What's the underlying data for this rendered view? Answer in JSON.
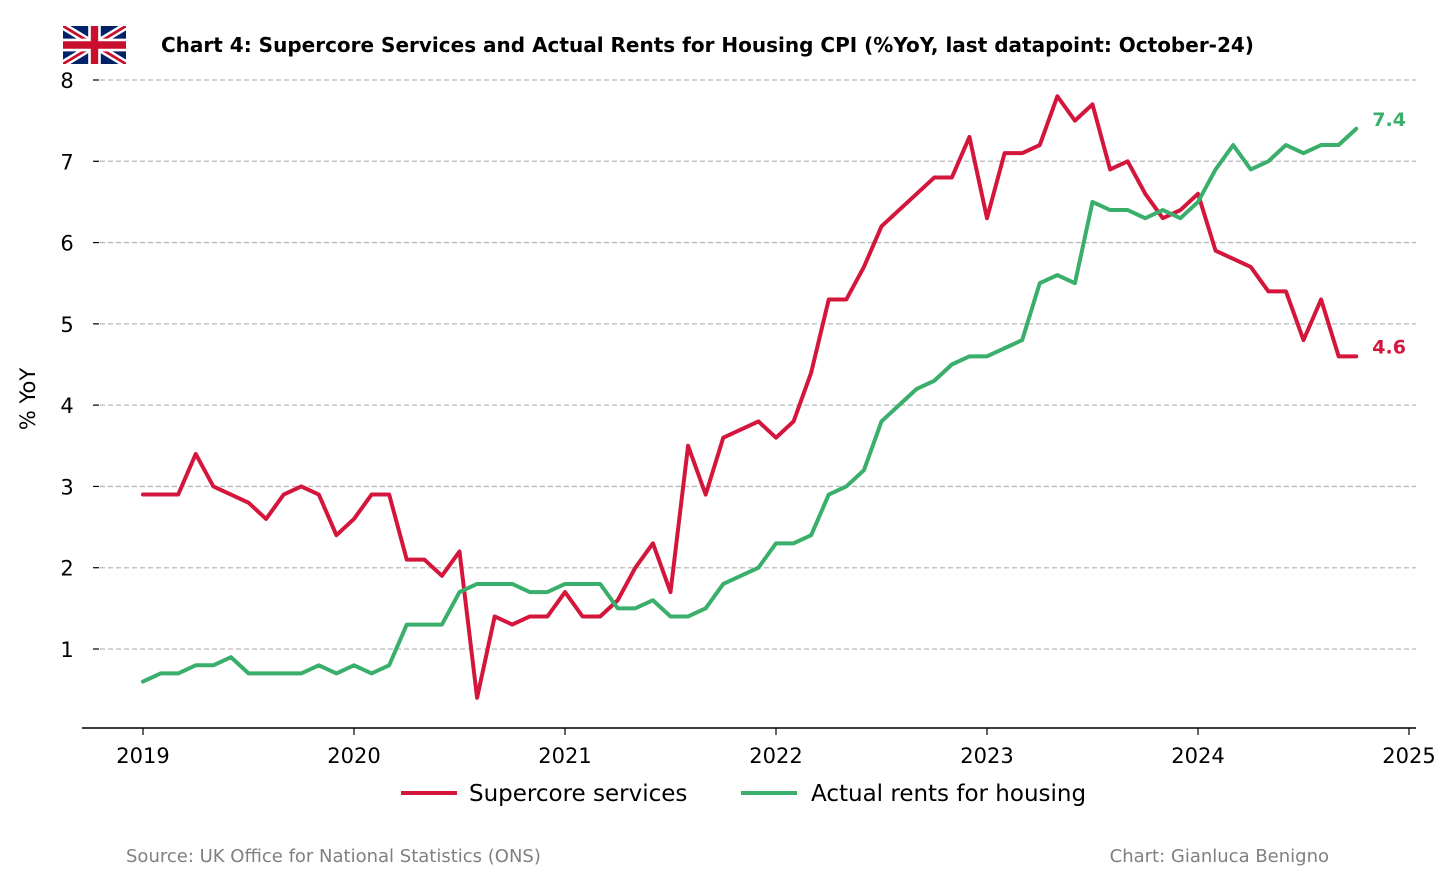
{
  "chart_data": {
    "type": "line",
    "title": "Chart 4: Supercore Services and Actual Rents for Housing CPI (%YoY, last datapoint: October-24)",
    "ylabel": "% YoY",
    "xlabel": "",
    "ylim": [
      0,
      8
    ],
    "xlim": [
      2019,
      2025
    ],
    "x_ticks": [
      "2019",
      "2020",
      "2021",
      "2022",
      "2023",
      "2024",
      "2025"
    ],
    "y_ticks": [
      "1",
      "2",
      "3",
      "4",
      "5",
      "6",
      "7",
      "8"
    ],
    "grid": "horizontal dashed",
    "legend_position": "bottom-center",
    "x_start": "2019-01",
    "x_frequency": "monthly",
    "series": [
      {
        "name": "Supercore services",
        "color": "#d4163c",
        "end_label": "4.6",
        "values": [
          2.9,
          2.9,
          2.9,
          3.4,
          3.0,
          2.9,
          2.8,
          2.6,
          2.9,
          3.0,
          2.9,
          2.4,
          2.6,
          2.9,
          2.9,
          2.1,
          2.1,
          1.9,
          2.2,
          0.4,
          1.4,
          1.3,
          1.4,
          1.4,
          1.7,
          1.4,
          1.4,
          1.6,
          2.0,
          2.3,
          1.7,
          3.5,
          2.9,
          3.6,
          3.7,
          3.8,
          3.6,
          3.8,
          4.4,
          5.3,
          5.3,
          5.7,
          6.2,
          6.4,
          6.6,
          6.8,
          6.8,
          7.3,
          6.3,
          7.1,
          7.1,
          7.2,
          7.8,
          7.5,
          7.7,
          6.9,
          7.0,
          6.6,
          6.3,
          6.4,
          6.6,
          5.9,
          5.8,
          5.7,
          5.4,
          5.4,
          4.8,
          5.3,
          4.6,
          4.6
        ]
      },
      {
        "name": "Actual rents for housing",
        "color": "#3aae6b",
        "end_label": "7.4",
        "values": [
          0.6,
          0.7,
          0.7,
          0.8,
          0.8,
          0.9,
          0.7,
          0.7,
          0.7,
          0.7,
          0.8,
          0.7,
          0.8,
          0.7,
          0.8,
          1.3,
          1.3,
          1.3,
          1.7,
          1.8,
          1.8,
          1.8,
          1.7,
          1.7,
          1.8,
          1.8,
          1.8,
          1.5,
          1.5,
          1.6,
          1.4,
          1.4,
          1.5,
          1.8,
          1.9,
          2.0,
          2.3,
          2.3,
          2.4,
          2.9,
          3.0,
          3.2,
          3.8,
          4.0,
          4.2,
          4.3,
          4.5,
          4.6,
          4.6,
          4.7,
          4.8,
          5.5,
          5.6,
          5.5,
          6.5,
          6.4,
          6.4,
          6.3,
          6.4,
          6.3,
          6.5,
          6.9,
          7.2,
          6.9,
          7.0,
          7.2,
          7.1,
          7.2,
          7.2,
          7.4
        ]
      }
    ]
  },
  "footer": {
    "source": "Source: UK Office for National Statistics (ONS)",
    "credit": "Chart: Gianluca Benigno"
  },
  "flag": {
    "icon": "uk-flag-icon",
    "colors": {
      "blue": "#012169",
      "red": "#c8102e",
      "white": "#ffffff"
    }
  }
}
